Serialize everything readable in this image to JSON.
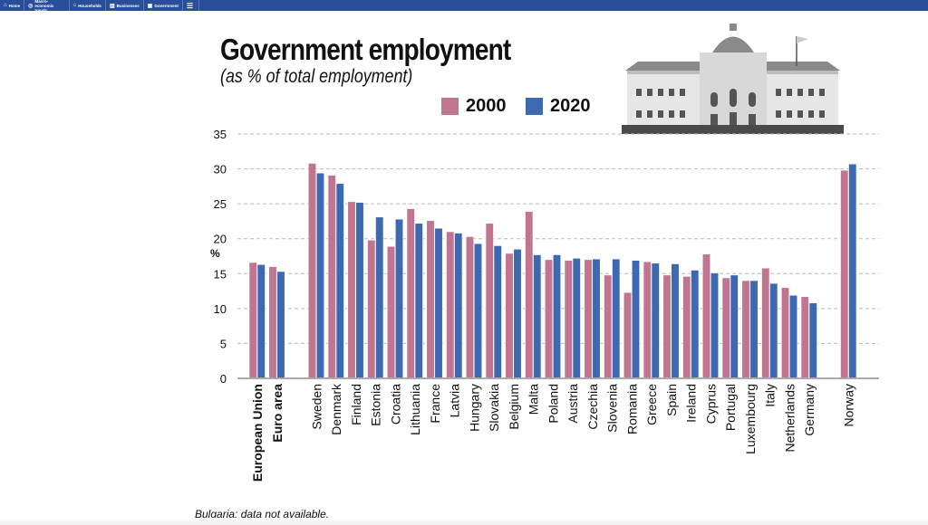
{
  "nav": {
    "items": [
      {
        "label": "Home",
        "icon": "home-icon"
      },
      {
        "label": "Macro-economic trends",
        "icon": "chart-icon"
      },
      {
        "label": "Households",
        "icon": "households-icon"
      },
      {
        "label": "Businesses",
        "icon": "businesses-icon"
      },
      {
        "label": "Government",
        "icon": "government-icon"
      }
    ],
    "menu_icon": "menu-add-icon"
  },
  "colors": {
    "nav": "#2a4f9a",
    "s2000": "#c27591",
    "s2020": "#3d69b0"
  },
  "footnote": "Bulgaria: data not available.",
  "chart_data": {
    "type": "bar",
    "title": "Government employment",
    "subtitle": "(as % of total employment)",
    "ylabel": "%",
    "ylim": [
      0,
      35
    ],
    "yticks": [
      "0",
      "5",
      "10",
      "15",
      "20",
      "25",
      "30",
      "35"
    ],
    "grid": true,
    "legend_position": "top",
    "categories": [
      "European Union",
      "Euro area",
      "Sweden",
      "Denmark",
      "Finland",
      "Estonia",
      "Croatia",
      "Lithuania",
      "France",
      "Latvia",
      "Hungary",
      "Slovakia",
      "Belgium",
      "Malta",
      "Poland",
      "Austria",
      "Czechia",
      "Slovenia",
      "Romania",
      "Greece",
      "Spain",
      "Ireland",
      "Cyprus",
      "Portugal",
      "Luxembourg",
      "Italy",
      "Netherlands",
      "Germany",
      "Norway"
    ],
    "series": [
      {
        "name": "2000",
        "values": [
          16.6,
          16.0,
          30.8,
          29.1,
          25.3,
          19.8,
          18.9,
          24.3,
          22.6,
          21.0,
          20.3,
          22.2,
          17.9,
          23.9,
          17.0,
          16.9,
          17.0,
          14.8,
          12.3,
          16.7,
          14.8,
          14.6,
          17.8,
          14.4,
          14.0,
          15.8,
          13.0,
          11.7,
          29.8
        ]
      },
      {
        "name": "2020",
        "values": [
          16.3,
          15.3,
          29.4,
          27.9,
          25.2,
          23.1,
          22.8,
          22.2,
          21.5,
          20.8,
          19.3,
          19.0,
          18.5,
          17.7,
          17.7,
          17.2,
          17.1,
          17.1,
          16.9,
          16.5,
          16.4,
          15.5,
          15.1,
          14.8,
          14.0,
          13.6,
          11.9,
          10.8,
          30.7
        ]
      }
    ]
  }
}
